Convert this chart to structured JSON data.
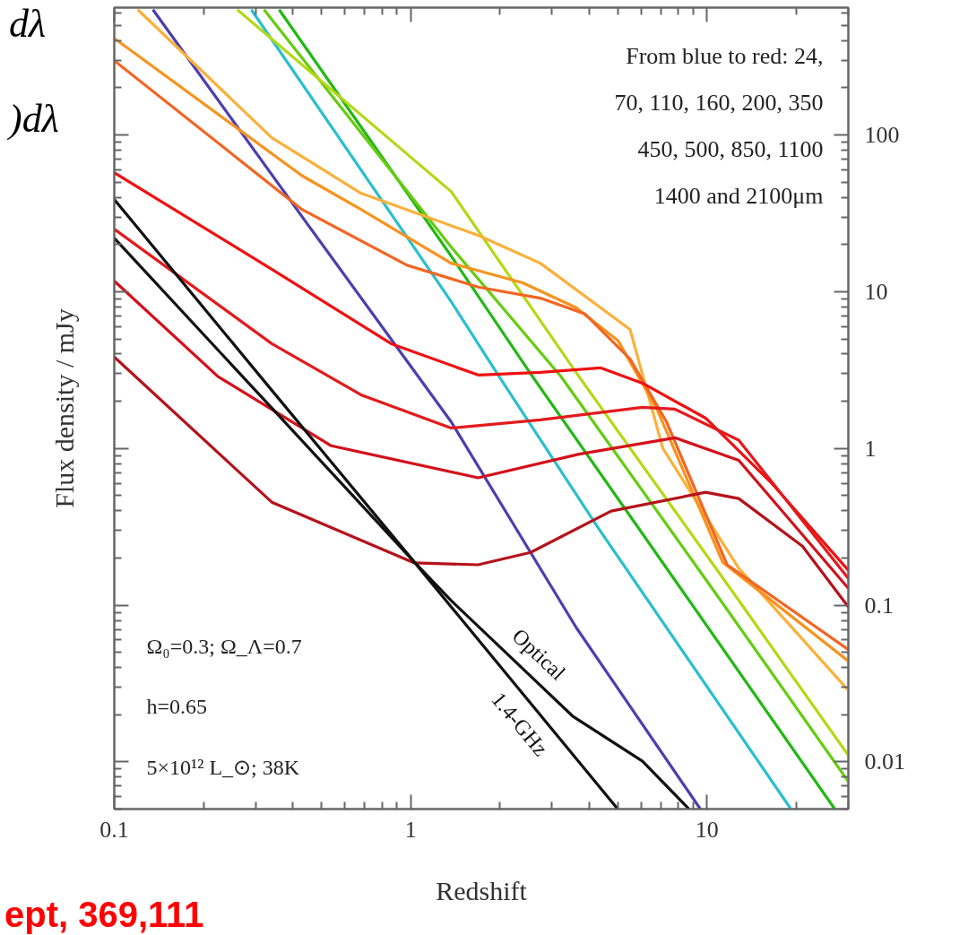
{
  "chart_data": {
    "type": "line",
    "xlabel": "Redshift",
    "ylabel": "Flux density / mJy",
    "log": "xy",
    "grid": false,
    "xlim": [
      0.1,
      30
    ],
    "ylim": [
      0.005,
      650
    ],
    "xticks": [
      0.1,
      1,
      10
    ],
    "yticks": [
      0.01,
      0.1,
      1,
      10,
      100
    ],
    "annotations": [
      "From blue to red: 24,\n70, 110, 160, 200, 350\n450, 500, 850, 1100\n1400 and 2100μm",
      "Ω₀=0.3; Ω_Λ=0.7",
      "h=0.65",
      "5×10¹² L_⊙; 38K",
      "dλ",
      ")dλ",
      "ept, 369,111"
    ],
    "series": [
      {
        "color": "#4b3fb0",
        "x": [
          0.135,
          0.45,
          1.37,
          3.62,
          9.5
        ],
        "values": [
          631,
          26.8,
          1.48,
          0.072,
          0.005
        ]
      },
      {
        "color": "#2bbfcc",
        "x": [
          0.29,
          1.37,
          1.99,
          4.28,
          19.2
        ],
        "values": [
          631,
          8.65,
          2.87,
          0.314,
          0.005
        ]
      },
      {
        "color": "#22b814",
        "x": [
          0.36,
          1.37,
          2.58,
          8.3,
          27.0
        ],
        "values": [
          631,
          16.9,
          2.87,
          0.122,
          0.005
        ]
      },
      {
        "color": "#66cc11",
        "x": [
          0.32,
          1.37,
          3.22,
          10.6,
          30
        ],
        "values": [
          631,
          19.3,
          2.87,
          0.122,
          0.0075
        ]
      },
      {
        "color": "#b4d816",
        "x": [
          0.26,
          1.37,
          3.7,
          12.2,
          30
        ],
        "values": [
          631,
          43.6,
          2.87,
          0.122,
          0.011
        ]
      },
      {
        "color": "#fbb03b",
        "x": [
          0.12,
          0.34,
          0.68,
          1.69,
          2.74,
          5.5,
          7.1,
          12.8,
          30
        ],
        "values": [
          631,
          96,
          42.5,
          22.9,
          15.2,
          5.75,
          1,
          0.172,
          0.0286
        ]
      },
      {
        "color": "#f7931e",
        "x": [
          0.1,
          0.43,
          0.68,
          1.37,
          2.39,
          3.62,
          5.02,
          6.8,
          11.3,
          30
        ],
        "values": [
          414,
          55,
          33.5,
          15.2,
          11.4,
          7.9,
          4.85,
          1.76,
          0.188,
          0.044
        ]
      },
      {
        "color": "#f26522",
        "x": [
          0.1,
          0.43,
          0.97,
          1.69,
          2.74,
          3.88,
          5.5,
          7.3,
          11.7,
          30
        ],
        "values": [
          298,
          33.5,
          14.8,
          10.7,
          9.1,
          7.2,
          3.73,
          1.48,
          0.181,
          0.052
        ]
      },
      {
        "color": "#ee1111",
        "x": [
          0.1,
          0.34,
          0.86,
          1.69,
          2.74,
          4.37,
          6.06,
          9.9,
          16.4,
          30
        ],
        "values": [
          57.5,
          13.9,
          4.66,
          2.94,
          3.06,
          3.27,
          2.61,
          1.56,
          0.61,
          0.167
        ]
      },
      {
        "color": "#e31a1c",
        "x": [
          0.1,
          0.34,
          0.68,
          1.37,
          2.74,
          6.06,
          7.8,
          12.8,
          30
        ],
        "values": [
          25.1,
          4.66,
          2.2,
          1.35,
          1.52,
          1.83,
          1.78,
          1.13,
          0.148
        ]
      },
      {
        "color": "#d4101a",
        "x": [
          0.1,
          0.224,
          0.54,
          1.69,
          3.7,
          7.8,
          12.8,
          30
        ],
        "values": [
          11.7,
          2.87,
          1.04,
          0.65,
          0.92,
          1.17,
          0.84,
          0.128
        ]
      },
      {
        "color": "#b5121b",
        "x": [
          0.1,
          0.34,
          1.03,
          1.69,
          2.54,
          4.75,
          9.9,
          12.8,
          21.0,
          30
        ],
        "values": [
          3.83,
          0.454,
          0.186,
          0.181,
          0.217,
          0.398,
          0.525,
          0.479,
          0.238,
          0.0974
        ]
      },
      {
        "name": "Optical",
        "color": "#111111",
        "x": [
          0.1,
          0.34,
          1.03,
          1.37,
          3.52,
          6.06,
          8.7
        ],
        "values": [
          38.8,
          2.35,
          0.188,
          0.107,
          0.0196,
          0.0101,
          0.005
        ]
      },
      {
        "name": "1.4-GHz",
        "color": "#111111",
        "x": [
          0.1,
          0.34,
          1.03,
          5.0
        ],
        "values": [
          22,
          1.81,
          0.188,
          0.005
        ]
      }
    ]
  }
}
